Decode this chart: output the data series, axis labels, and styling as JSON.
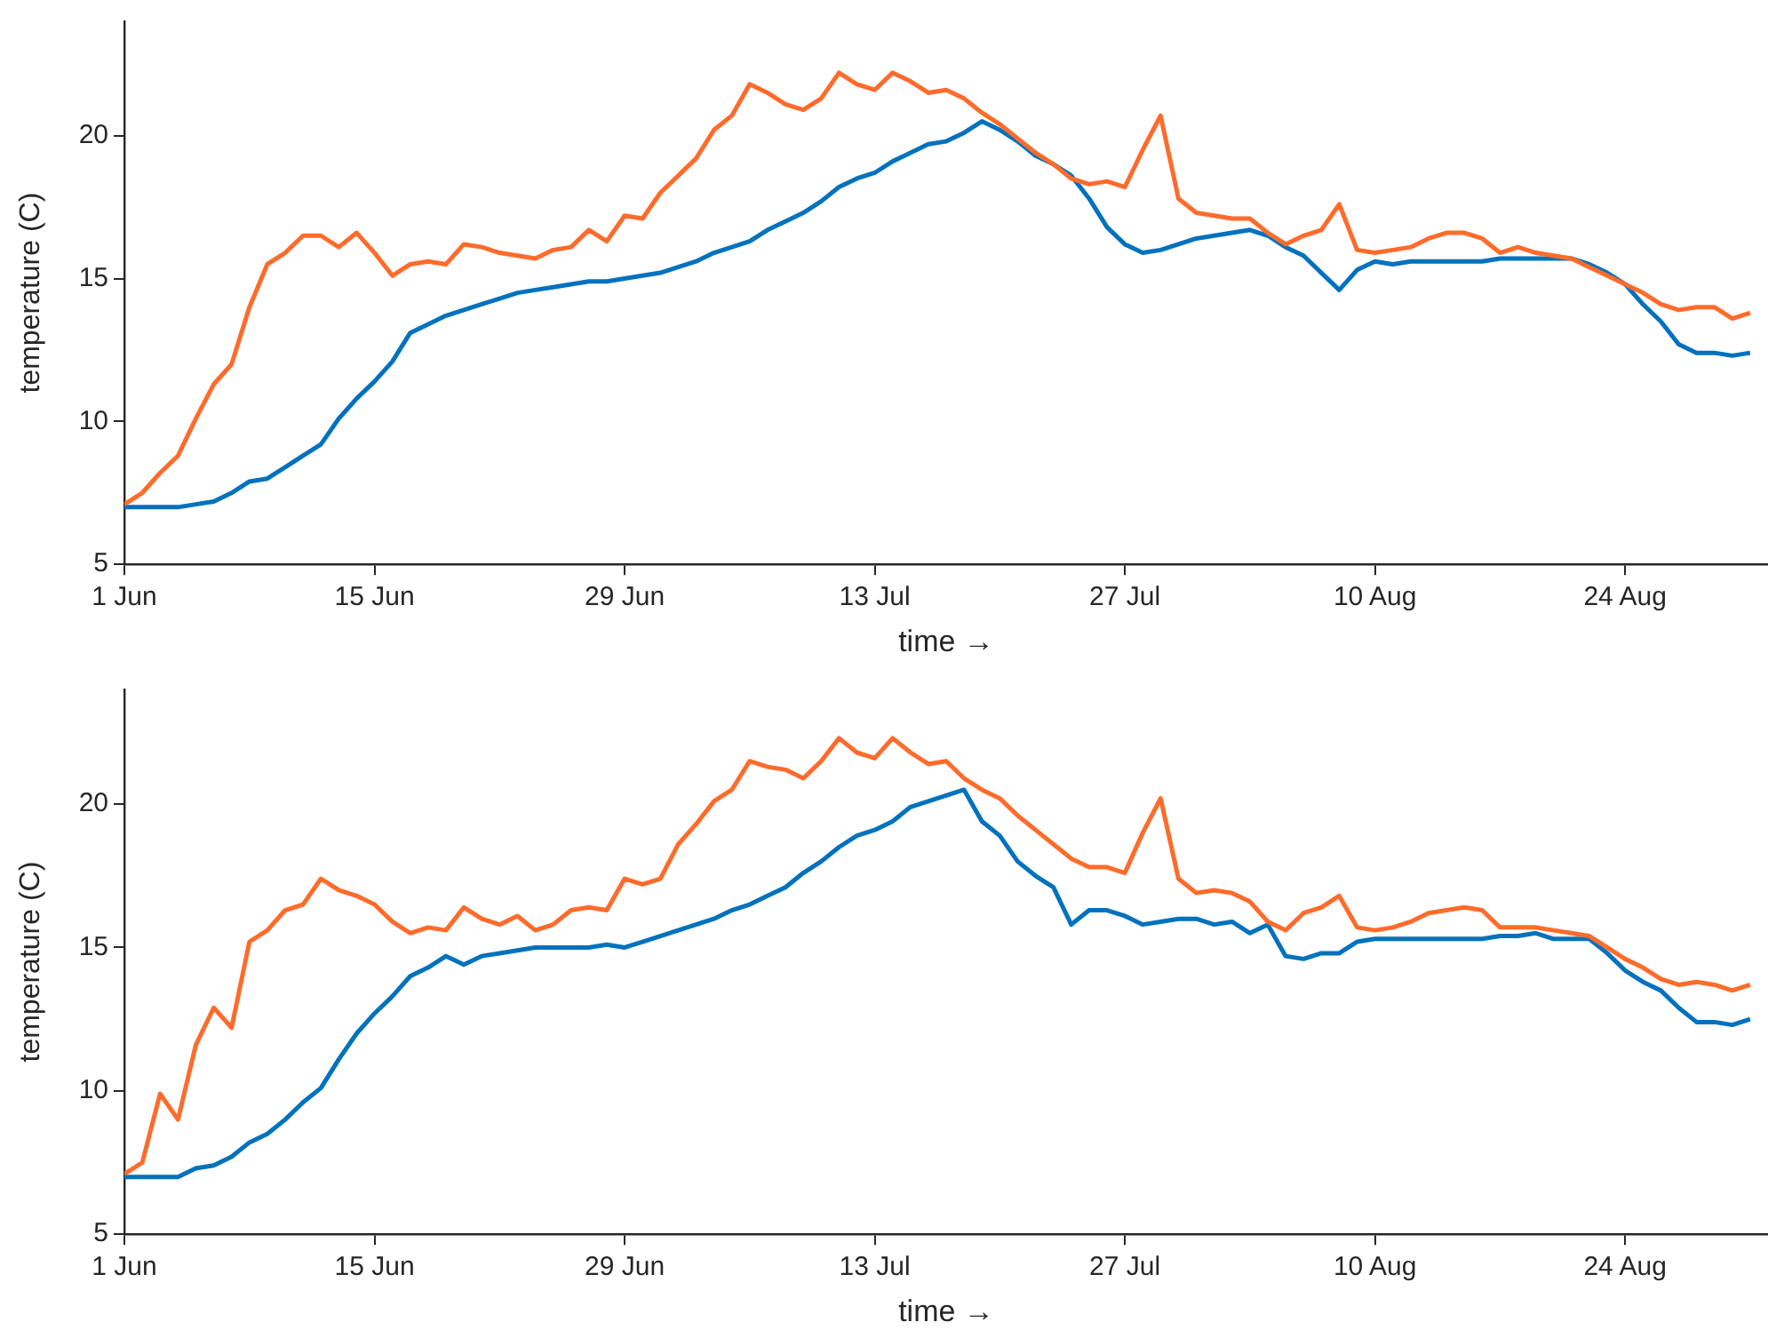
{
  "chart_data": [
    {
      "type": "line",
      "xlabel": "time →",
      "ylabel": "temperature (C)",
      "xlim": [
        "--06-01",
        "--09-01"
      ],
      "ylim": [
        5,
        24
      ],
      "yticks": [
        5,
        10,
        15,
        20
      ],
      "xticks": [
        {
          "value": "--06-01",
          "label": "1 Jun"
        },
        {
          "value": "--06-15",
          "label": "15 Jun"
        },
        {
          "value": "--06-29",
          "label": "29 Jun"
        },
        {
          "value": "--07-13",
          "label": "13 Jul"
        },
        {
          "value": "--07-27",
          "label": "27 Jul"
        },
        {
          "value": "--08-10",
          "label": "10 Aug"
        },
        {
          "value": "--08-24",
          "label": "24 Aug"
        }
      ],
      "x": [
        "--06-01",
        "--06-02",
        "--06-03",
        "--06-04",
        "--06-05",
        "--06-06",
        "--06-07",
        "--06-08",
        "--06-09",
        "--06-10",
        "--06-11",
        "--06-12",
        "--06-13",
        "--06-14",
        "--06-15",
        "--06-16",
        "--06-17",
        "--06-18",
        "--06-19",
        "--06-20",
        "--06-21",
        "--06-22",
        "--06-23",
        "--06-24",
        "--06-25",
        "--06-26",
        "--06-27",
        "--06-28",
        "--06-29",
        "--06-30",
        "--07-01",
        "--07-02",
        "--07-03",
        "--07-04",
        "--07-05",
        "--07-06",
        "--07-07",
        "--07-08",
        "--07-09",
        "--07-10",
        "--07-11",
        "--07-12",
        "--07-13",
        "--07-14",
        "--07-15",
        "--07-16",
        "--07-17",
        "--07-18",
        "--07-19",
        "--07-20",
        "--07-21",
        "--07-22",
        "--07-23",
        "--07-24",
        "--07-25",
        "--07-26",
        "--07-27",
        "--07-28",
        "--07-29",
        "--07-30",
        "--07-31",
        "--08-01",
        "--08-02",
        "--08-03",
        "--08-04",
        "--08-05",
        "--08-06",
        "--08-07",
        "--08-08",
        "--08-09",
        "--08-10",
        "--08-11",
        "--08-12",
        "--08-13",
        "--08-14",
        "--08-15",
        "--08-16",
        "--08-17",
        "--08-18",
        "--08-19",
        "--08-20",
        "--08-21",
        "--08-22",
        "--08-23",
        "--08-24",
        "--08-25",
        "--08-26",
        "--08-27",
        "--08-28",
        "--08-29",
        "--08-30",
        "--08-31"
      ],
      "series": [
        {
          "color": "#ff6b2b",
          "values": [
            7.1,
            7.5,
            8.2,
            8.8,
            10.1,
            11.3,
            12.0,
            14.0,
            15.5,
            15.9,
            16.5,
            16.5,
            16.1,
            16.6,
            15.9,
            15.1,
            15.5,
            15.6,
            15.5,
            16.2,
            16.1,
            15.9,
            15.8,
            15.7,
            16.0,
            16.1,
            16.7,
            16.3,
            17.2,
            17.1,
            18.0,
            18.6,
            19.2,
            20.2,
            20.7,
            21.8,
            21.5,
            21.1,
            20.9,
            21.3,
            22.2,
            21.8,
            21.6,
            22.2,
            21.9,
            21.5,
            21.6,
            21.3,
            20.8,
            20.4,
            19.9,
            19.4,
            19.0,
            18.5,
            18.3,
            18.4,
            18.2,
            19.5,
            20.7,
            17.8,
            17.3,
            17.2,
            17.1,
            17.1,
            16.6,
            16.2,
            16.5,
            16.7,
            17.6,
            16.0,
            15.9,
            16.0,
            16.1,
            16.4,
            16.6,
            16.6,
            16.4,
            15.9,
            16.1,
            15.9,
            15.8,
            15.7,
            15.4,
            15.1,
            14.8,
            14.5,
            14.1,
            13.9,
            14.0,
            14.0,
            13.6,
            13.8
          ]
        },
        {
          "color": "#0072bd",
          "values": [
            7.0,
            7.0,
            7.0,
            7.0,
            7.1,
            7.2,
            7.5,
            7.9,
            8.0,
            8.4,
            8.8,
            9.2,
            10.1,
            10.8,
            11.4,
            12.1,
            13.1,
            13.4,
            13.7,
            13.9,
            14.1,
            14.3,
            14.5,
            14.6,
            14.7,
            14.8,
            14.9,
            14.9,
            15.0,
            15.1,
            15.2,
            15.4,
            15.6,
            15.9,
            16.1,
            16.3,
            16.7,
            17.0,
            17.3,
            17.7,
            18.2,
            18.5,
            18.7,
            19.1,
            19.4,
            19.7,
            19.8,
            20.1,
            20.5,
            20.2,
            19.8,
            19.3,
            19.0,
            18.6,
            17.8,
            16.8,
            16.2,
            15.9,
            16.0,
            16.2,
            16.4,
            16.5,
            16.6,
            16.7,
            16.5,
            16.1,
            15.8,
            15.2,
            14.6,
            15.3,
            15.6,
            15.5,
            15.6,
            15.6,
            15.6,
            15.6,
            15.6,
            15.7,
            15.7,
            15.7,
            15.7,
            15.7,
            15.5,
            15.2,
            14.8,
            14.1,
            13.5,
            12.7,
            12.4,
            12.4,
            12.3,
            12.4
          ]
        }
      ]
    },
    {
      "type": "line",
      "xlabel": "time →",
      "ylabel": "temperature (C)",
      "xlim": [
        "--06-01",
        "--09-01"
      ],
      "ylim": [
        5,
        24
      ],
      "yticks": [
        5,
        10,
        15,
        20
      ],
      "xticks": [
        {
          "value": "--06-01",
          "label": "1 Jun"
        },
        {
          "value": "--06-15",
          "label": "15 Jun"
        },
        {
          "value": "--06-29",
          "label": "29 Jun"
        },
        {
          "value": "--07-13",
          "label": "13 Jul"
        },
        {
          "value": "--07-27",
          "label": "27 Jul"
        },
        {
          "value": "--08-10",
          "label": "10 Aug"
        },
        {
          "value": "--08-24",
          "label": "24 Aug"
        }
      ],
      "x": [
        "--06-01",
        "--06-02",
        "--06-03",
        "--06-04",
        "--06-05",
        "--06-06",
        "--06-07",
        "--06-08",
        "--06-09",
        "--06-10",
        "--06-11",
        "--06-12",
        "--06-13",
        "--06-14",
        "--06-15",
        "--06-16",
        "--06-17",
        "--06-18",
        "--06-19",
        "--06-20",
        "--06-21",
        "--06-22",
        "--06-23",
        "--06-24",
        "--06-25",
        "--06-26",
        "--06-27",
        "--06-28",
        "--06-29",
        "--06-30",
        "--07-01",
        "--07-02",
        "--07-03",
        "--07-04",
        "--07-05",
        "--07-06",
        "--07-07",
        "--07-08",
        "--07-09",
        "--07-10",
        "--07-11",
        "--07-12",
        "--07-13",
        "--07-14",
        "--07-15",
        "--07-16",
        "--07-17",
        "--07-18",
        "--07-19",
        "--07-20",
        "--07-21",
        "--07-22",
        "--07-23",
        "--07-24",
        "--07-25",
        "--07-26",
        "--07-27",
        "--07-28",
        "--07-29",
        "--07-30",
        "--07-31",
        "--08-01",
        "--08-02",
        "--08-03",
        "--08-04",
        "--08-05",
        "--08-06",
        "--08-07",
        "--08-08",
        "--08-09",
        "--08-10",
        "--08-11",
        "--08-12",
        "--08-13",
        "--08-14",
        "--08-15",
        "--08-16",
        "--08-17",
        "--08-18",
        "--08-19",
        "--08-20",
        "--08-21",
        "--08-22",
        "--08-23",
        "--08-24",
        "--08-25",
        "--08-26",
        "--08-27",
        "--08-28",
        "--08-29",
        "--08-30",
        "--08-31"
      ],
      "series": [
        {
          "color": "#ff6b2b",
          "values": [
            7.1,
            7.5,
            9.9,
            9.0,
            11.6,
            12.9,
            12.2,
            15.2,
            15.6,
            16.3,
            16.5,
            17.4,
            17.0,
            16.8,
            16.5,
            15.9,
            15.5,
            15.7,
            15.6,
            16.4,
            16.0,
            15.8,
            16.1,
            15.6,
            15.8,
            16.3,
            16.4,
            16.3,
            17.4,
            17.2,
            17.4,
            18.6,
            19.3,
            20.1,
            20.5,
            21.5,
            21.3,
            21.2,
            20.9,
            21.5,
            22.3,
            21.8,
            21.6,
            22.3,
            21.8,
            21.4,
            21.5,
            20.9,
            20.5,
            20.2,
            19.6,
            19.1,
            18.6,
            18.1,
            17.8,
            17.8,
            17.6,
            19.0,
            20.2,
            17.4,
            16.9,
            17.0,
            16.9,
            16.6,
            15.9,
            15.6,
            16.2,
            16.4,
            16.8,
            15.7,
            15.6,
            15.7,
            15.9,
            16.2,
            16.3,
            16.4,
            16.3,
            15.7,
            15.7,
            15.7,
            15.6,
            15.5,
            15.4,
            15.0,
            14.6,
            14.3,
            13.9,
            13.7,
            13.8,
            13.7,
            13.5,
            13.7
          ]
        },
        {
          "color": "#0072bd",
          "values": [
            7.0,
            7.0,
            7.0,
            7.0,
            7.3,
            7.4,
            7.7,
            8.2,
            8.5,
            9.0,
            9.6,
            10.1,
            11.1,
            12.0,
            12.7,
            13.3,
            14.0,
            14.3,
            14.7,
            14.4,
            14.7,
            14.8,
            14.9,
            15.0,
            15.0,
            15.0,
            15.0,
            15.1,
            15.0,
            15.2,
            15.4,
            15.6,
            15.8,
            16.0,
            16.3,
            16.5,
            16.8,
            17.1,
            17.6,
            18.0,
            18.5,
            18.9,
            19.1,
            19.4,
            19.9,
            20.1,
            20.3,
            20.5,
            19.4,
            18.9,
            18.0,
            17.5,
            17.1,
            15.8,
            16.3,
            16.3,
            16.1,
            15.8,
            15.9,
            16.0,
            16.0,
            15.8,
            15.9,
            15.5,
            15.8,
            14.7,
            14.6,
            14.8,
            14.8,
            15.2,
            15.3,
            15.3,
            15.3,
            15.3,
            15.3,
            15.3,
            15.3,
            15.4,
            15.4,
            15.5,
            15.3,
            15.3,
            15.3,
            14.8,
            14.2,
            13.8,
            13.5,
            12.9,
            12.4,
            12.4,
            12.3,
            12.5
          ]
        }
      ]
    }
  ]
}
